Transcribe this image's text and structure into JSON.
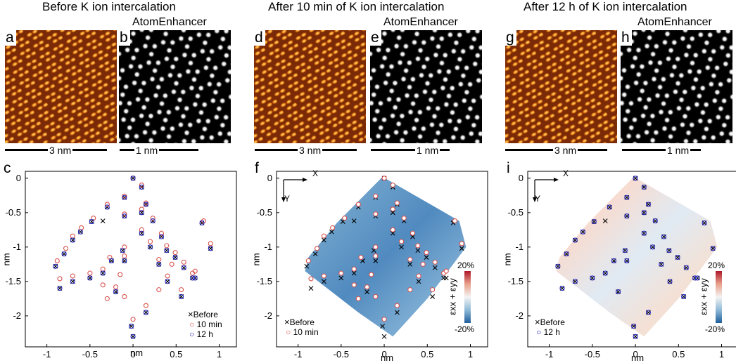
{
  "headings": {
    "col1": "Before K ion intercalation",
    "col2": "After 10 min of K ion intercalation",
    "col3": "After 12 h of K ion intercalation"
  },
  "enhancer_label": "AtomEnhancer",
  "panel_labels": {
    "a": "a",
    "b": "b",
    "c": "c",
    "d": "d",
    "e": "e",
    "f": "f",
    "g": "g",
    "h": "h",
    "i": "i"
  },
  "scale_bars": {
    "stm": "3 nm",
    "enhanced": "1 nm"
  },
  "plot": {
    "xlabel": "nm",
    "ylabel": "nm",
    "xticks": [
      "-1",
      "-0.5",
      "0",
      "0.5",
      "1"
    ],
    "yticks": [
      "0",
      "-0.5",
      "-1",
      "-1.5",
      "-2"
    ],
    "axis_x": "X",
    "axis_y": "Y"
  },
  "legend": {
    "before": "Before",
    "min10": "10 min",
    "h12": "12 h"
  },
  "colorbar": {
    "label": "εxx + εyy",
    "max": "20%",
    "min": "-20%"
  },
  "colors": {
    "before": "#000000",
    "min10": "#d9534f",
    "h12": "#1f1fbf",
    "strain_neg": "#3a78b5",
    "strain_pos": "#d04030"
  },
  "chart_data": [
    {
      "type": "scatter",
      "panel": "c",
      "xlabel": "nm",
      "ylabel": "nm",
      "xlim": [
        -1.25,
        1.2
      ],
      "ylim": [
        -2.45,
        0.1
      ],
      "series": [
        {
          "name": "Before",
          "marker": "x",
          "x": [
            0,
            0.1,
            0.15,
            0.23,
            0.33,
            0.39,
            0.49,
            0.59,
            0.69,
            0.8,
            0.9,
            -0.1,
            -0.3,
            -0.48,
            -0.61,
            -0.7,
            -0.8,
            -0.9,
            0.1,
            -0.1,
            0.1,
            -0.25,
            -0.35,
            -0.5,
            -0.7,
            -0.85,
            -0.12,
            -0.1,
            -0.2,
            0.2,
            0.3,
            0.4,
            0.56,
            0.72,
            -0.02,
            0.15,
            0,
            -0.35
          ],
          "y": [
            0,
            -0.13,
            -0.38,
            -0.62,
            -0.85,
            -1.05,
            -1.15,
            -1.3,
            -1.45,
            -0.65,
            -1.02,
            -0.28,
            -0.42,
            -0.63,
            -0.78,
            -0.9,
            -1.1,
            -1.28,
            -0.5,
            -0.55,
            -0.8,
            -1.2,
            -1.38,
            -1.45,
            -1.5,
            -1.6,
            -1.05,
            -1.2,
            -1.65,
            -1.0,
            -1.25,
            -1.5,
            -1.72,
            -1.45,
            -2.15,
            -1.95,
            -2.3,
            -0.62
          ]
        },
        {
          "name": "10 min",
          "marker": "o",
          "x": [
            0,
            0.1,
            0.15,
            0.23,
            0.33,
            0.39,
            0.49,
            0.59,
            0.69,
            0.82,
            0.9,
            -0.1,
            -0.3,
            -0.46,
            -0.6,
            -0.7,
            -0.78,
            -0.88,
            0.1,
            -0.1,
            0.1,
            -0.27,
            -0.35,
            -0.5,
            -0.7,
            -0.85,
            -0.1,
            -0.1,
            -0.2,
            0.2,
            0.3,
            0.4,
            0.56,
            0.72,
            0,
            0.15,
            -0.1,
            -0.35,
            0.3,
            0.45,
            -0.3,
            -0.15
          ],
          "y": [
            0,
            -0.1,
            -0.36,
            -0.58,
            -0.8,
            -0.98,
            -1.08,
            -1.22,
            -1.38,
            -0.62,
            -0.95,
            -0.26,
            -0.38,
            -0.58,
            -0.72,
            -0.84,
            -1.02,
            -1.2,
            -0.45,
            -0.52,
            -0.75,
            -1.15,
            -1.32,
            -1.38,
            -1.42,
            -1.46,
            -1.0,
            -1.13,
            -1.58,
            -0.92,
            -1.18,
            -1.42,
            -1.62,
            -1.35,
            -2.05,
            -1.85,
            -1.72,
            -1.55,
            -1.62,
            -1.25,
            -1.75,
            -1.4
          ]
        },
        {
          "name": "12 h",
          "marker": "o",
          "x": [
            0,
            0.1,
            0.15,
            0.23,
            0.33,
            0.39,
            0.49,
            0.59,
            0.69,
            0.8,
            0.9,
            -0.1,
            -0.3,
            -0.48,
            -0.61,
            -0.7,
            -0.8,
            -0.9,
            0.1,
            -0.1,
            0.1,
            -0.25,
            -0.35,
            -0.5,
            -0.7,
            -0.85,
            -0.12,
            -0.1,
            -0.2,
            0.2,
            0.3,
            0.4,
            0.56,
            0.72,
            -0.02,
            0.15,
            0
          ],
          "y": [
            0,
            -0.13,
            -0.38,
            -0.62,
            -0.85,
            -1.05,
            -1.15,
            -1.3,
            -1.45,
            -0.65,
            -1.02,
            -0.28,
            -0.42,
            -0.63,
            -0.78,
            -0.9,
            -1.1,
            -1.28,
            -0.5,
            -0.55,
            -0.8,
            -1.2,
            -1.38,
            -1.45,
            -1.5,
            -1.6,
            -1.05,
            -1.2,
            -1.65,
            -1.0,
            -1.25,
            -1.5,
            -1.72,
            -1.45,
            -2.15,
            -1.95,
            -2.3
          ]
        }
      ]
    }
  ]
}
